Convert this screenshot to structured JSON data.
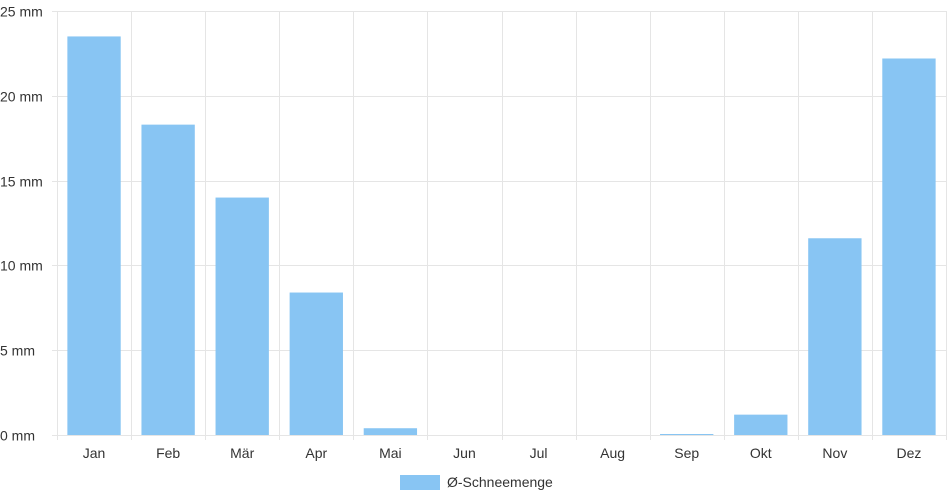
{
  "chart_data": {
    "type": "bar",
    "categories": [
      "Jan",
      "Feb",
      "Mär",
      "Apr",
      "Mai",
      "Jun",
      "Jul",
      "Aug",
      "Sep",
      "Okt",
      "Nov",
      "Dez"
    ],
    "series": [
      {
        "name": "Ø-Schneemenge",
        "values": [
          23.5,
          18.3,
          14.0,
          8.4,
          0.4,
          0,
          0,
          0,
          0.05,
          1.2,
          11.6,
          22.2
        ]
      }
    ],
    "ylim": [
      0,
      25
    ],
    "yticks": [
      0,
      5,
      10,
      15,
      20,
      25
    ],
    "y_unit_suffix": " mm",
    "grid": true,
    "legend_position": "bottom-center",
    "colors": {
      "bar": "#88c5f3",
      "grid": "#e5e5e5",
      "text": "#333333"
    }
  }
}
